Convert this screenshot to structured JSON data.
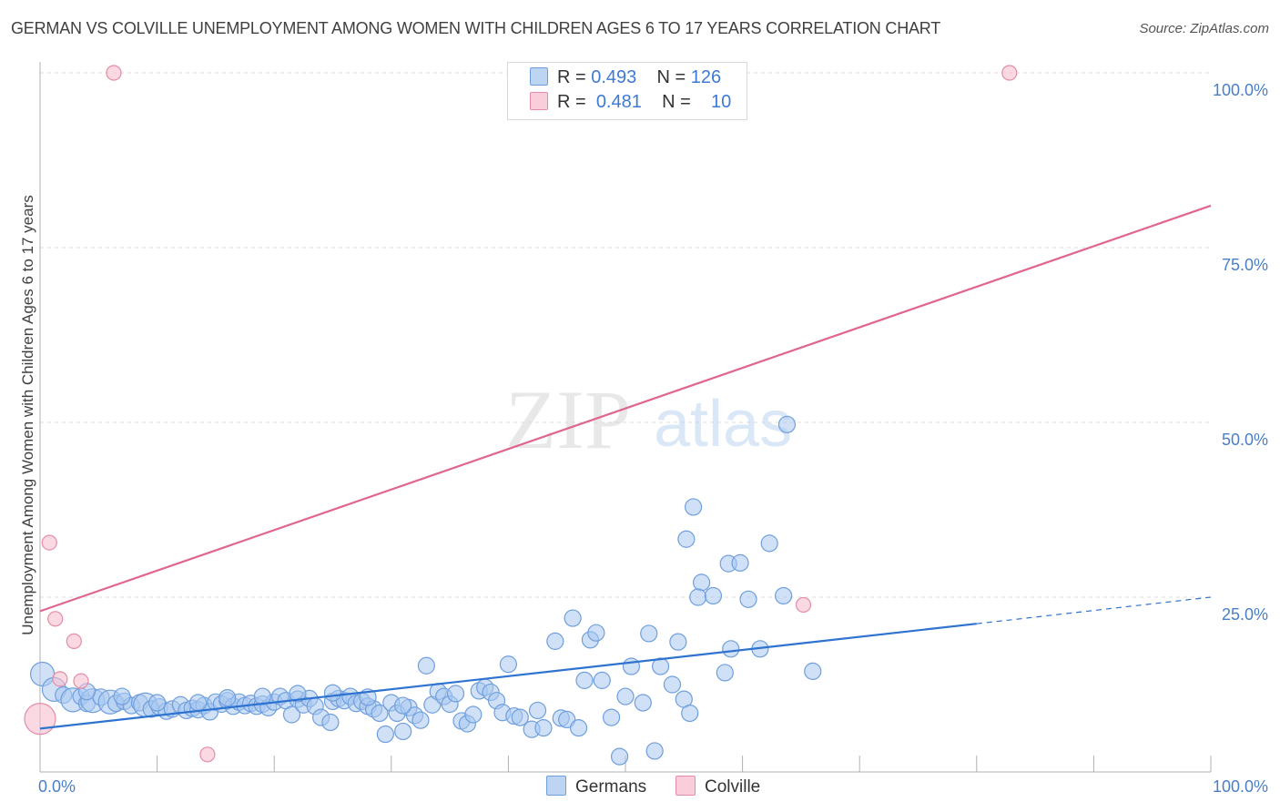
{
  "title": "GERMAN VS COLVILLE UNEMPLOYMENT AMONG WOMEN WITH CHILDREN AGES 6 TO 17 YEARS CORRELATION CHART",
  "source": "Source: ZipAtlas.com",
  "watermark": {
    "zip": "ZIP",
    "atlas": "atlas"
  },
  "legend": {
    "r_label": "R =",
    "n_label": "N =",
    "germans": {
      "r": "0.493",
      "n": "126"
    },
    "colville": {
      "r": "0.481",
      "n": "10"
    }
  },
  "colors": {
    "germans_fill": "#a9c8f0",
    "germans_stroke": "#6f9fdd",
    "germans_line": "#2f73d0",
    "colville_fill": "#f7c0cf",
    "colville_stroke": "#e58ca7",
    "colville_line": "#e06690"
  },
  "chart_data": {
    "type": "scatter",
    "title": "GERMAN VS COLVILLE UNEMPLOYMENT AMONG WOMEN WITH CHILDREN AGES 6 TO 17 YEARS CORRELATION CHART",
    "xlabel": "",
    "ylabel": "Unemployment Among Women with Children Ages 6 to 17 years",
    "xlim": [
      0,
      100
    ],
    "ylim": [
      0,
      100
    ],
    "x_tick_labels": [
      "0.0%",
      "100.0%"
    ],
    "y_ticks": [
      25,
      50,
      75,
      100
    ],
    "y_tick_labels": [
      "25.0%",
      "50.0%",
      "75.0%",
      "100.0%"
    ],
    "grid": true,
    "series": [
      {
        "name": "Germans",
        "points": [
          [
            0.2,
            14.0
          ],
          [
            1.2,
            11.8
          ],
          [
            2.0,
            11.0
          ],
          [
            2.8,
            10.3
          ],
          [
            3.5,
            10.8
          ],
          [
            4.0,
            9.8
          ],
          [
            4.5,
            10.2
          ],
          [
            5.2,
            10.7
          ],
          [
            6.0,
            10.0
          ],
          [
            6.5,
            9.8
          ],
          [
            7.2,
            10.1
          ],
          [
            7.8,
            9.5
          ],
          [
            8.5,
            9.9
          ],
          [
            9.0,
            9.6
          ],
          [
            9.5,
            9.0
          ],
          [
            10.2,
            9.3
          ],
          [
            10.8,
            8.7
          ],
          [
            11.3,
            9.0
          ],
          [
            12.0,
            9.6
          ],
          [
            12.5,
            8.8
          ],
          [
            13.0,
            9.1
          ],
          [
            13.5,
            8.9
          ],
          [
            14.0,
            9.5
          ],
          [
            14.5,
            8.6
          ],
          [
            15.0,
            10.0
          ],
          [
            15.5,
            9.7
          ],
          [
            16.0,
            10.2
          ],
          [
            16.5,
            9.4
          ],
          [
            17.0,
            10.0
          ],
          [
            17.5,
            9.5
          ],
          [
            18.0,
            9.8
          ],
          [
            18.5,
            9.4
          ],
          [
            19.0,
            9.7
          ],
          [
            19.5,
            9.2
          ],
          [
            20.0,
            10.0
          ],
          [
            20.5,
            10.8
          ],
          [
            21.0,
            10.2
          ],
          [
            21.5,
            8.2
          ],
          [
            22.0,
            10.4
          ],
          [
            22.5,
            9.6
          ],
          [
            23.0,
            10.5
          ],
          [
            23.5,
            9.4
          ],
          [
            24.0,
            7.8
          ],
          [
            24.8,
            7.1
          ],
          [
            25.0,
            10.1
          ],
          [
            25.5,
            10.5
          ],
          [
            26.0,
            10.2
          ],
          [
            26.5,
            10.8
          ],
          [
            27.0,
            9.8
          ],
          [
            27.5,
            10.1
          ],
          [
            28.0,
            9.4
          ],
          [
            28.5,
            9.0
          ],
          [
            29.0,
            8.4
          ],
          [
            29.5,
            5.4
          ],
          [
            30.0,
            9.9
          ],
          [
            30.5,
            8.4
          ],
          [
            31.0,
            5.8
          ],
          [
            31.5,
            9.2
          ],
          [
            32.0,
            8.1
          ],
          [
            32.5,
            7.4
          ],
          [
            33.0,
            15.2
          ],
          [
            33.5,
            9.6
          ],
          [
            34.0,
            11.5
          ],
          [
            34.5,
            10.8
          ],
          [
            35.0,
            9.7
          ],
          [
            35.5,
            11.2
          ],
          [
            36.0,
            7.3
          ],
          [
            36.5,
            6.9
          ],
          [
            37.0,
            8.2
          ],
          [
            37.5,
            11.6
          ],
          [
            38.0,
            12.1
          ],
          [
            38.5,
            11.4
          ],
          [
            39.0,
            10.2
          ],
          [
            39.5,
            8.5
          ],
          [
            40.0,
            15.4
          ],
          [
            40.5,
            8.0
          ],
          [
            41.0,
            7.8
          ],
          [
            42.0,
            6.1
          ],
          [
            42.5,
            8.8
          ],
          [
            43.0,
            6.3
          ],
          [
            44.0,
            18.7
          ],
          [
            44.5,
            7.7
          ],
          [
            45.0,
            7.5
          ],
          [
            45.5,
            22.0
          ],
          [
            46.0,
            6.3
          ],
          [
            46.5,
            13.1
          ],
          [
            47.0,
            18.9
          ],
          [
            47.5,
            19.9
          ],
          [
            48.0,
            13.1
          ],
          [
            48.8,
            7.8
          ],
          [
            49.5,
            2.2
          ],
          [
            50.0,
            10.8
          ],
          [
            50.5,
            15.1
          ],
          [
            51.5,
            9.9
          ],
          [
            52.0,
            19.8
          ],
          [
            52.5,
            3.0
          ],
          [
            53.0,
            15.1
          ],
          [
            54.0,
            12.5
          ],
          [
            54.5,
            18.6
          ],
          [
            55.0,
            10.4
          ],
          [
            55.5,
            8.4
          ],
          [
            55.8,
            37.9
          ],
          [
            55.2,
            33.3
          ],
          [
            56.5,
            27.1
          ],
          [
            56.2,
            25.0
          ],
          [
            57.5,
            25.2
          ],
          [
            58.5,
            14.2
          ],
          [
            59.0,
            17.6
          ],
          [
            58.8,
            29.8
          ],
          [
            59.8,
            29.9
          ],
          [
            60.5,
            24.7
          ],
          [
            61.5,
            17.6
          ],
          [
            62.3,
            32.7
          ],
          [
            63.5,
            25.2
          ],
          [
            63.8,
            49.7
          ],
          [
            66.0,
            14.4
          ],
          [
            4.0,
            11.5
          ],
          [
            7.0,
            10.8
          ],
          [
            10.0,
            9.9
          ],
          [
            13.5,
            9.9
          ],
          [
            16.0,
            10.6
          ],
          [
            19.0,
            10.8
          ],
          [
            22.0,
            11.2
          ],
          [
            25.0,
            11.3
          ],
          [
            28.0,
            10.7
          ],
          [
            31.0,
            9.5
          ]
        ],
        "trend": {
          "x": [
            0,
            80
          ],
          "y": [
            6.2,
            21.2
          ],
          "dashed_extension": {
            "x": [
              80,
              100
            ],
            "y": [
              21.2,
              25.0
            ]
          }
        }
      },
      {
        "name": "Colville",
        "points": [
          [
            0.0,
            7.6
          ],
          [
            0.8,
            32.8
          ],
          [
            1.3,
            21.9
          ],
          [
            2.9,
            18.7
          ],
          [
            1.7,
            13.3
          ],
          [
            3.5,
            13.0
          ],
          [
            14.3,
            2.5
          ],
          [
            6.3,
            100.0
          ],
          [
            82.8,
            100.0
          ],
          [
            65.2,
            23.9
          ]
        ],
        "trend": {
          "x": [
            0,
            100
          ],
          "y": [
            23.0,
            81.0
          ]
        }
      }
    ]
  },
  "bottom_legend": {
    "germans": "Germans",
    "colville": "Colville"
  }
}
